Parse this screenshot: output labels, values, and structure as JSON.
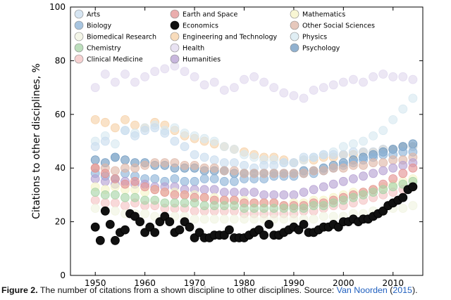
{
  "chart_data": {
    "type": "scatter",
    "ylabel": "Citations to other disciplines, %",
    "xlim": [
      1945,
      2016
    ],
    "ylim": [
      0,
      100
    ],
    "x_ticks": [
      1950,
      1960,
      1970,
      1980,
      1990,
      2000,
      2010
    ],
    "y_ticks": [
      0,
      20,
      40,
      60,
      80,
      100
    ],
    "grid": false,
    "legend_position": "top",
    "legend": [
      {
        "name": "Arts",
        "color": "#c8dcee"
      },
      {
        "name": "Biology",
        "color": "#8bb1d6"
      },
      {
        "name": "Biomedical Research",
        "color": "#f0f3e0"
      },
      {
        "name": "Chemistry",
        "color": "#a6d3a6"
      },
      {
        "name": "Clinical Medicine",
        "color": "#f3c2c2"
      },
      {
        "name": "Earth and Space",
        "color": "#e39191"
      },
      {
        "name": "Economics",
        "color": "#111111"
      },
      {
        "name": "Engineering and Technology",
        "color": "#f6d0a6"
      },
      {
        "name": "Health",
        "color": "#e0d8ee"
      },
      {
        "name": "Humanities",
        "color": "#b59fd2"
      },
      {
        "name": "Mathematics",
        "color": "#f6f3c6"
      },
      {
        "name": "Other Social Sciences",
        "color": "#deb6a6"
      },
      {
        "name": "Physics",
        "color": "#d6e8f0"
      },
      {
        "name": "Psychology",
        "color": "#6c97bf"
      }
    ],
    "series": [
      {
        "name": "Health",
        "color": "#e0d8ee",
        "x": [
          1950,
          1952,
          1954,
          1956,
          1958,
          1960,
          1962,
          1964,
          1966,
          1968,
          1970,
          1972,
          1974,
          1976,
          1978,
          1980,
          1982,
          1984,
          1986,
          1988,
          1990,
          1992,
          1994,
          1996,
          1998,
          2000,
          2002,
          2004,
          2006,
          2008,
          2010,
          2012,
          2014
        ],
        "y": [
          70,
          75,
          72,
          75,
          72,
          74,
          76,
          77,
          78,
          76,
          74,
          71,
          72,
          69,
          70,
          73,
          74,
          72,
          70,
          68,
          67,
          66,
          69,
          70,
          71,
          72,
          73,
          72,
          74,
          75,
          74,
          74,
          73
        ]
      },
      {
        "name": "Engineering and Technology",
        "color": "#f6d0a6",
        "x": [
          1950,
          1952,
          1954,
          1956,
          1958,
          1960,
          1962,
          1964,
          1966,
          1968,
          1970,
          1972,
          1974,
          1976,
          1978,
          1980,
          1982,
          1984,
          1986,
          1988,
          1990,
          1992,
          1994,
          1996,
          1998,
          2000,
          2002,
          2004,
          2006,
          2008,
          2010,
          2012,
          2014
        ],
        "y": [
          58,
          57,
          55,
          58,
          56,
          55,
          57,
          56,
          54,
          52,
          51,
          50,
          49,
          48,
          47,
          46,
          45,
          44,
          44,
          43,
          42,
          43,
          43,
          44,
          44,
          45,
          45,
          46,
          46,
          47,
          47,
          48,
          48
        ]
      },
      {
        "name": "Physics",
        "color": "#d6e8f0",
        "x": [
          1950,
          1952,
          1954,
          1956,
          1958,
          1960,
          1962,
          1964,
          1966,
          1968,
          1970,
          1972,
          1974,
          1976,
          1978,
          1980,
          1982,
          1984,
          1986,
          1988,
          1990,
          1992,
          1994,
          1996,
          1998,
          2000,
          2002,
          2004,
          2006,
          2008,
          2010,
          2012,
          2014
        ],
        "y": [
          50,
          52,
          49,
          54,
          53,
          55,
          56,
          54,
          55,
          53,
          52,
          51,
          50,
          48,
          47,
          45,
          44,
          43,
          43,
          42,
          42,
          43,
          44,
          45,
          46,
          48,
          49,
          50,
          52,
          54,
          58,
          62,
          66
        ]
      },
      {
        "name": "Arts",
        "color": "#c8dcee",
        "x": [
          1950,
          1952,
          1954,
          1956,
          1958,
          1960,
          1962,
          1964,
          1966,
          1968,
          1970,
          1972,
          1974,
          1976,
          1978,
          1980,
          1982,
          1984,
          1986,
          1988,
          1990,
          1992,
          1994,
          1996,
          1998,
          2000,
          2002,
          2004,
          2006,
          2008,
          2010,
          2012,
          2014
        ],
        "y": [
          48,
          50,
          44,
          54,
          52,
          54,
          55,
          53,
          50,
          48,
          45,
          44,
          43,
          42,
          42,
          41,
          40,
          41,
          41,
          42,
          42,
          44,
          44,
          45,
          45,
          45,
          46,
          46,
          46,
          47,
          47,
          48,
          48
        ]
      },
      {
        "name": "Psychology",
        "color": "#6c97bf",
        "x": [
          1950,
          1952,
          1954,
          1956,
          1958,
          1960,
          1962,
          1964,
          1966,
          1968,
          1970,
          1972,
          1974,
          1976,
          1978,
          1980,
          1982,
          1984,
          1986,
          1988,
          1990,
          1992,
          1994,
          1996,
          1998,
          2000,
          2002,
          2004,
          2006,
          2008,
          2010,
          2012,
          2014
        ],
        "y": [
          43,
          42,
          44,
          43,
          42,
          42,
          41,
          41,
          40,
          40,
          40,
          39,
          39,
          39,
          38,
          38,
          38,
          38,
          38,
          38,
          38,
          39,
          39,
          40,
          41,
          42,
          43,
          44,
          45,
          46,
          47,
          48,
          49
        ]
      },
      {
        "name": "Biology",
        "color": "#8bb1d6",
        "x": [
          1950,
          1952,
          1954,
          1956,
          1958,
          1960,
          1962,
          1964,
          1966,
          1968,
          1970,
          1972,
          1974,
          1976,
          1978,
          1980,
          1982,
          1984,
          1986,
          1988,
          1990,
          1992,
          1994,
          1996,
          1998,
          2000,
          2002,
          2004,
          2006,
          2008,
          2010,
          2012,
          2014
        ],
        "y": [
          38,
          37,
          36,
          38,
          37,
          36,
          36,
          35,
          36,
          35,
          35,
          36,
          36,
          35,
          35,
          36,
          36,
          36,
          37,
          37,
          37,
          38,
          38,
          39,
          40,
          41,
          42,
          43,
          44,
          45,
          45,
          46,
          46
        ]
      },
      {
        "name": "Other Social Sciences",
        "color": "#deb6a6",
        "x": [
          1950,
          1952,
          1954,
          1956,
          1958,
          1960,
          1962,
          1964,
          1966,
          1968,
          1970,
          1972,
          1974,
          1976,
          1978,
          1980,
          1982,
          1984,
          1986,
          1988,
          1990,
          1992,
          1994,
          1996,
          1998,
          2000,
          2002,
          2004,
          2006,
          2008,
          2010,
          2012,
          2014
        ],
        "y": [
          40,
          40,
          39,
          40,
          40,
          41,
          42,
          42,
          42,
          41,
          41,
          40,
          40,
          39,
          39,
          38,
          38,
          38,
          38,
          38,
          38,
          38,
          39,
          39,
          40,
          40,
          41,
          41,
          42,
          42,
          43,
          43,
          44
        ]
      },
      {
        "name": "Humanities",
        "color": "#b59fd2",
        "x": [
          1950,
          1952,
          1954,
          1956,
          1958,
          1960,
          1962,
          1964,
          1966,
          1968,
          1970,
          1972,
          1974,
          1976,
          1978,
          1980,
          1982,
          1984,
          1986,
          1988,
          1990,
          1992,
          1994,
          1996,
          1998,
          2000,
          2002,
          2004,
          2006,
          2008,
          2010,
          2012,
          2014
        ],
        "y": [
          36,
          35,
          34,
          35,
          34,
          34,
          33,
          33,
          33,
          32,
          32,
          32,
          32,
          31,
          31,
          31,
          31,
          30,
          30,
          30,
          30,
          31,
          32,
          33,
          34,
          35,
          36,
          37,
          38,
          39,
          40,
          41,
          42
        ]
      },
      {
        "name": "Mathematics",
        "color": "#f6f3c6",
        "x": [
          1950,
          1952,
          1954,
          1956,
          1958,
          1960,
          1962,
          1964,
          1966,
          1968,
          1970,
          1972,
          1974,
          1976,
          1978,
          1980,
          1982,
          1984,
          1986,
          1988,
          1990,
          1992,
          1994,
          1996,
          1998,
          2000,
          2002,
          2004,
          2006,
          2008,
          2010,
          2012,
          2014
        ],
        "y": [
          33,
          32,
          33,
          32,
          32,
          31,
          32,
          31,
          31,
          30,
          30,
          29,
          29,
          28,
          28,
          28,
          27,
          27,
          27,
          26,
          27,
          27,
          28,
          28,
          29,
          30,
          31,
          31,
          32,
          33,
          34,
          35,
          36
        ]
      },
      {
        "name": "Clinical Medicine",
        "color": "#f3c2c2",
        "x": [
          1950,
          1952,
          1954,
          1956,
          1958,
          1960,
          1962,
          1964,
          1966,
          1968,
          1970,
          1972,
          1974,
          1976,
          1978,
          1980,
          1982,
          1984,
          1986,
          1988,
          1990,
          1992,
          1994,
          1996,
          1998,
          2000,
          2002,
          2004,
          2006,
          2008,
          2010,
          2012,
          2014
        ],
        "y": [
          28,
          27,
          27,
          26,
          27,
          26,
          26,
          25,
          25,
          25,
          24,
          24,
          24,
          24,
          24,
          23,
          23,
          23,
          23,
          23,
          23,
          24,
          24,
          25,
          26,
          26,
          27,
          28,
          29,
          30,
          31,
          32,
          33
        ]
      },
      {
        "name": "Earth and Space",
        "color": "#e39191",
        "x": [
          1950,
          1952,
          1954,
          1956,
          1958,
          1960,
          1962,
          1964,
          1966,
          1968,
          1970,
          1972,
          1974,
          1976,
          1978,
          1980,
          1982,
          1984,
          1986,
          1988,
          1990,
          1992,
          1994,
          1996,
          1998,
          2000,
          2002,
          2004,
          2006,
          2008,
          2010,
          2012,
          2014
        ],
        "y": [
          40,
          38,
          36,
          34,
          35,
          33,
          32,
          31,
          30,
          30,
          29,
          29,
          28,
          28,
          28,
          27,
          27,
          27,
          27,
          26,
          26,
          26,
          27,
          27,
          28,
          29,
          30,
          31,
          32,
          34,
          36,
          38,
          40
        ]
      },
      {
        "name": "Chemistry",
        "color": "#a6d3a6",
        "x": [
          1950,
          1952,
          1954,
          1956,
          1958,
          1960,
          1962,
          1964,
          1966,
          1968,
          1970,
          1972,
          1974,
          1976,
          1978,
          1980,
          1982,
          1984,
          1986,
          1988,
          1990,
          1992,
          1994,
          1996,
          1998,
          2000,
          2002,
          2004,
          2006,
          2008,
          2010,
          2012,
          2014
        ],
        "y": [
          31,
          30,
          30,
          29,
          29,
          28,
          28,
          27,
          27,
          27,
          27,
          26,
          26,
          26,
          26,
          25,
          25,
          25,
          25,
          25,
          25,
          25,
          26,
          26,
          27,
          28,
          29,
          30,
          31,
          32,
          33,
          34,
          35
        ]
      },
      {
        "name": "Biomedical Research",
        "color": "#f0f3e0",
        "x": [
          1950,
          1952,
          1954,
          1956,
          1958,
          1960,
          1962,
          1964,
          1966,
          1968,
          1970,
          1972,
          1974,
          1976,
          1978,
          1980,
          1982,
          1984,
          1986,
          1988,
          1990,
          1992,
          1994,
          1996,
          1998,
          2000,
          2002,
          2004,
          2006,
          2008,
          2010,
          2012,
          2014
        ],
        "y": [
          25,
          24,
          24,
          23,
          23,
          23,
          22,
          22,
          22,
          22,
          21,
          21,
          21,
          21,
          21,
          21,
          21,
          21,
          21,
          21,
          21,
          21,
          21,
          22,
          22,
          22,
          23,
          23,
          24,
          24,
          25,
          25,
          26
        ]
      },
      {
        "name": "Economics",
        "color": "#111111",
        "x": [
          1950,
          1951,
          1952,
          1953,
          1954,
          1955,
          1956,
          1957,
          1958,
          1959,
          1960,
          1961,
          1962,
          1963,
          1964,
          1965,
          1966,
          1967,
          1968,
          1969,
          1970,
          1971,
          1972,
          1973,
          1974,
          1975,
          1976,
          1977,
          1978,
          1979,
          1980,
          1981,
          1982,
          1983,
          1984,
          1985,
          1986,
          1987,
          1988,
          1989,
          1990,
          1991,
          1992,
          1993,
          1994,
          1995,
          1996,
          1997,
          1998,
          1999,
          2000,
          2001,
          2002,
          2003,
          2004,
          2005,
          2006,
          2007,
          2008,
          2009,
          2010,
          2011,
          2012,
          2013,
          2014
        ],
        "y": [
          18,
          13,
          24,
          19,
          13,
          16,
          17,
          23,
          22,
          20,
          16,
          18,
          16,
          20,
          22,
          20,
          16,
          17,
          20,
          18,
          14,
          16,
          14,
          14,
          15,
          15,
          15,
          17,
          14,
          14,
          14,
          15,
          16,
          17,
          15,
          19,
          15,
          15,
          16,
          17,
          18,
          17,
          19,
          16,
          16,
          17,
          18,
          18,
          19,
          18,
          20,
          20,
          21,
          20,
          21,
          21,
          22,
          23,
          24,
          26,
          27,
          28,
          29,
          32,
          33
        ]
      }
    ]
  },
  "caption": {
    "label": "Figure 2.",
    "text": " The number of citations from a shown discipline to other disciplines. Source: ",
    "source_link": "Van Noorden",
    "year_open": " (",
    "year_link": "2015",
    "year_close": ")."
  }
}
